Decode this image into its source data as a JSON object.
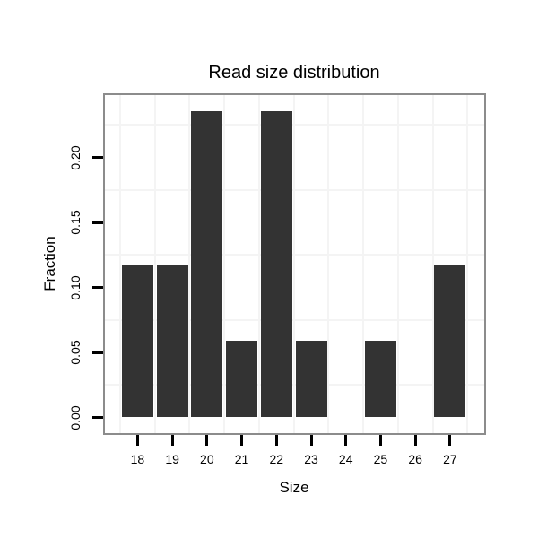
{
  "chart_data": {
    "type": "bar",
    "title": "Read size distribution",
    "xlabel": "Size",
    "ylabel": "Fraction",
    "categories": [
      "18",
      "19",
      "20",
      "21",
      "22",
      "23",
      "24",
      "25",
      "26",
      "27"
    ],
    "values": [
      0.1176,
      0.1176,
      0.2353,
      0.0588,
      0.2353,
      0.0588,
      0,
      0.0588,
      0,
      0.1176
    ],
    "y_ticks": [
      {
        "label": "0.00",
        "value": 0.0
      },
      {
        "label": "0.05",
        "value": 0.05
      },
      {
        "label": "0.10",
        "value": 0.1
      },
      {
        "label": "0.15",
        "value": 0.15
      },
      {
        "label": "0.20",
        "value": 0.2
      }
    ],
    "minor_grid_y_values": [
      0.025,
      0.075,
      0.125,
      0.175,
      0.225
    ],
    "ylim": [
      -0.012,
      0.248
    ],
    "grid": "minor-gridlines-only",
    "legend": "none",
    "colors": {
      "bar": "#333333",
      "grid": "#f4f4f4",
      "panel_border": "#8c8c8c",
      "panel_background": "#ffffff",
      "tick": "#000000",
      "text": "#000000",
      "page_background": "#ffffff"
    }
  }
}
